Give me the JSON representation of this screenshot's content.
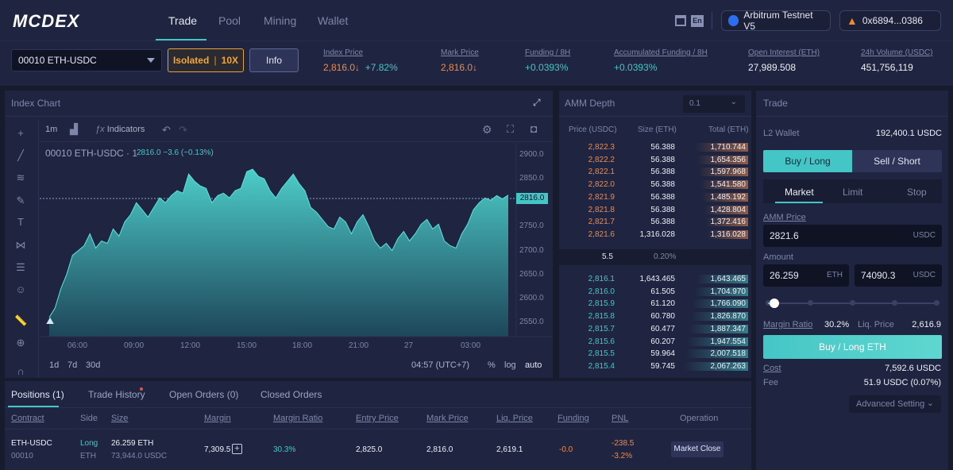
{
  "brand": {
    "logo": "MCDEX"
  },
  "nav": {
    "tabs": [
      "Trade",
      "Pool",
      "Mining",
      "Wallet"
    ]
  },
  "header": {
    "lang": "En",
    "network": "Arbitrum Testnet V5",
    "account": "0x6894...0386"
  },
  "market": {
    "selector": "00010 ETH-USDC",
    "margin_mode": "Isolated",
    "leverage": "10X",
    "info_label": "Info",
    "stats": [
      {
        "label": "Index Price",
        "value": "2,816.0↓",
        "extra": "+7.82%"
      },
      {
        "label": "Mark Price",
        "value": "2,816.0↓"
      },
      {
        "label": "Funding / 8H",
        "value": "+0.0393%"
      },
      {
        "label": "Accumulated Funding / 8H",
        "value": "+0.0393%"
      },
      {
        "label": "Open Interest (ETH)",
        "value": "27,989.508"
      },
      {
        "label": "24h Volume (USDC)",
        "value": "451,756,119"
      }
    ]
  },
  "chart_panel": {
    "title": "Index Chart",
    "interval": "1m",
    "indicators_label": "Indicators",
    "legend_symbol": "00010 ETH-USDC · 1",
    "legend_value": "2816.0  −3.6 (−0.13%)",
    "last_price_tag": "2816.0",
    "ranges": [
      "1d",
      "7d",
      "30d"
    ],
    "time_label": "04:57 (UTC+7)",
    "pct_label": "%",
    "log_label": "log",
    "auto_label": "auto"
  },
  "chart_data": {
    "type": "area",
    "x_ticks": [
      "06:00",
      "09:00",
      "12:00",
      "15:00",
      "18:00",
      "21:00",
      "27",
      "03:00"
    ],
    "y_ticks": [
      2900.0,
      2850.0,
      2800.0,
      2750.0,
      2700.0,
      2650.0,
      2600.0,
      2550.0
    ],
    "ylim": [
      2520,
      2925
    ],
    "values": [
      2560,
      2580,
      2620,
      2650,
      2690,
      2700,
      2710,
      2735,
      2705,
      2720,
      2715,
      2745,
      2730,
      2760,
      2775,
      2800,
      2785,
      2770,
      2790,
      2810,
      2800,
      2815,
      2825,
      2820,
      2860,
      2845,
      2835,
      2830,
      2800,
      2815,
      2820,
      2810,
      2825,
      2830,
      2865,
      2870,
      2855,
      2850,
      2825,
      2810,
      2830,
      2845,
      2860,
      2840,
      2825,
      2790,
      2780,
      2765,
      2750,
      2745,
      2770,
      2760,
      2735,
      2760,
      2775,
      2750,
      2720,
      2705,
      2715,
      2700,
      2725,
      2740,
      2720,
      2735,
      2755,
      2765,
      2745,
      2755,
      2720,
      2710,
      2705,
      2735,
      2755,
      2785,
      2800,
      2810,
      2805,
      2815,
      2808,
      2816
    ]
  },
  "depth": {
    "title": "AMM Depth",
    "step": "0.1",
    "headers": [
      "Price (USDC)",
      "Size (ETH)",
      "Total (ETH)"
    ],
    "asks": [
      {
        "price": "2,822.3",
        "size": "56.388",
        "total": "1,710.744",
        "ratio": 0.83
      },
      {
        "price": "2,822.2",
        "size": "56.388",
        "total": "1,654.356",
        "ratio": 0.8
      },
      {
        "price": "2,822.1",
        "size": "56.388",
        "total": "1,597.968",
        "ratio": 0.77
      },
      {
        "price": "2,822.0",
        "size": "56.388",
        "total": "1,541.580",
        "ratio": 0.75
      },
      {
        "price": "2,821.9",
        "size": "56.388",
        "total": "1,485.192",
        "ratio": 0.72
      },
      {
        "price": "2,821.8",
        "size": "56.388",
        "total": "1,428.804",
        "ratio": 0.69
      },
      {
        "price": "2,821.7",
        "size": "56.388",
        "total": "1,372.416",
        "ratio": 0.66
      },
      {
        "price": "2,821.6",
        "size": "1,316.028",
        "total": "1,316.028",
        "ratio": 0.64
      }
    ],
    "spread": "5.5",
    "spread_pct": "0.20%",
    "bids": [
      {
        "price": "2,816.1",
        "size": "1,643.465",
        "total": "1,643.465",
        "ratio": 0.8
      },
      {
        "price": "2,816.0",
        "size": "61.505",
        "total": "1,704.970",
        "ratio": 0.83
      },
      {
        "price": "2,815.9",
        "size": "61.120",
        "total": "1,766.090",
        "ratio": 0.86
      },
      {
        "price": "2,815.8",
        "size": "60.780",
        "total": "1,826.870",
        "ratio": 0.89
      },
      {
        "price": "2,815.7",
        "size": "60.477",
        "total": "1,887.347",
        "ratio": 0.92
      },
      {
        "price": "2,815.6",
        "size": "60.207",
        "total": "1,947.554",
        "ratio": 0.95
      },
      {
        "price": "2,815.5",
        "size": "59.964",
        "total": "2,007.518",
        "ratio": 0.98
      },
      {
        "price": "2,815.4",
        "size": "59.745",
        "total": "2,067.263",
        "ratio": 1.0
      }
    ]
  },
  "trade": {
    "title": "Trade",
    "wallet_label": "L2 Wallet",
    "wallet_value": "192,400.1 USDC",
    "buy_tab": "Buy / Long",
    "sell_tab": "Sell / Short",
    "order_types": [
      "Market",
      "Limit",
      "Stop"
    ],
    "amm_price_label": "AMM Price",
    "amm_price_value": "2821.6",
    "usdc_unit": "USDC",
    "amount_label": "Amount",
    "amount_eth": "26.259",
    "eth_unit": "ETH",
    "amount_usdc": "74090.3",
    "margin_ratio_label": "Margin Ratio",
    "margin_ratio_value": "30.2%",
    "liq_label": "Liq. Price",
    "liq_value": "2,616.9",
    "submit": "Buy / Long ETH",
    "cost_label": "Cost",
    "cost_value": "7,592.6 USDC",
    "fee_label": "Fee",
    "fee_value": "51.9 USDC (0.07%)",
    "advanced": "Advanced Setting",
    "leverage_slider": 0.02
  },
  "positions": {
    "tabs": [
      "Positions (1)",
      "Trade History",
      "Open Orders (0)",
      "Closed Orders"
    ],
    "columns": [
      "Contract",
      "Side",
      "Size",
      "Margin",
      "Margin Ratio",
      "Entry Price",
      "Mark Price",
      "Liq. Price",
      "Funding",
      "PNL",
      "Operation"
    ],
    "row": {
      "contract": "ETH-USDC",
      "contract_id": "00010",
      "side": "Long",
      "side_unit": "ETH",
      "size": "26.259 ETH",
      "size_usdc": "73,944.0 USDC",
      "margin": "7,309.5",
      "margin_ratio": "30.3%",
      "entry": "2,825.0",
      "mark": "2,816.0",
      "liq": "2,619.1",
      "funding": "-0.0",
      "pnl": "-238.5",
      "pnl_pct": "-3.2%",
      "operation": "Market Close"
    }
  }
}
